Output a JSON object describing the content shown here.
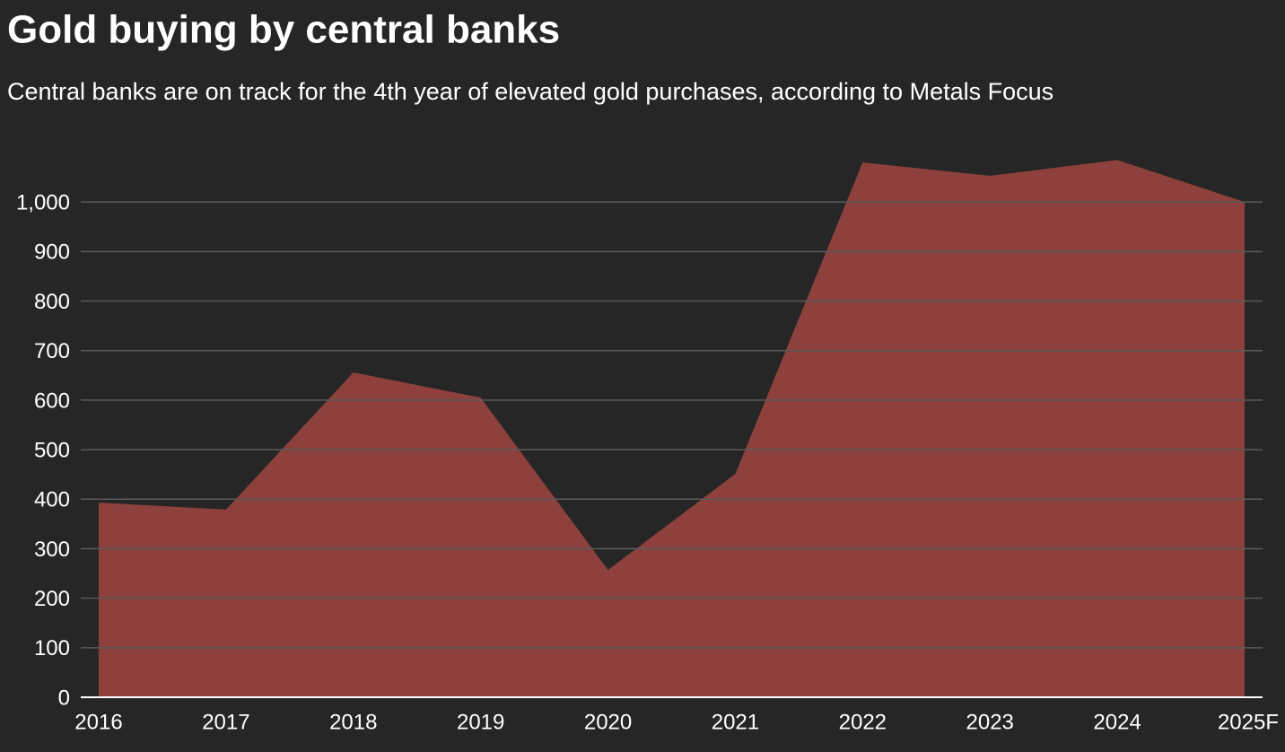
{
  "chart_data": {
    "type": "area",
    "title": "Gold buying by central banks",
    "subtitle": "Central banks are on track for the 4th year of elevated gold purchases, according to Metals Focus",
    "categories": [
      "2016",
      "2017",
      "2018",
      "2019",
      "2020",
      "2021",
      "2022",
      "2023",
      "2024",
      "2025F"
    ],
    "values": [
      393,
      379,
      656,
      605,
      257,
      451,
      1080,
      1053,
      1085,
      1000
    ],
    "color": "#8d403c",
    "ylim": [
      0,
      1100
    ],
    "yticks": [
      0,
      100,
      200,
      300,
      400,
      500,
      600,
      700,
      800,
      900,
      {
        "value": 1000,
        "label": "1,000"
      }
    ],
    "grid": true
  }
}
